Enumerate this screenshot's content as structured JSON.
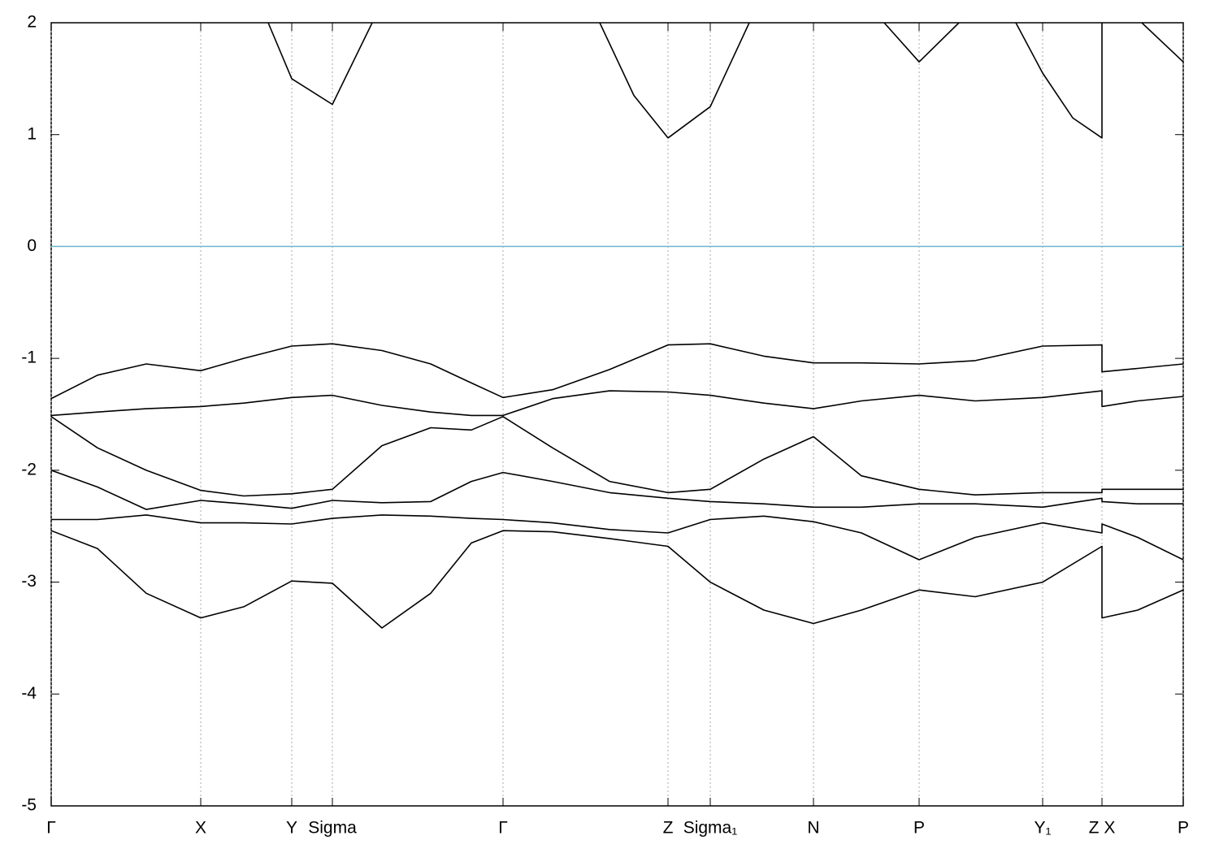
{
  "chart_data": {
    "type": "line",
    "xlim": [
      0,
      13.93
    ],
    "ylim": [
      -5,
      2
    ],
    "xticks": [
      {
        "value": 0,
        "label": "Γ"
      },
      {
        "value": 1.84,
        "label": "X"
      },
      {
        "value": 2.96,
        "label": "Y"
      },
      {
        "value": 3.46,
        "label": "Sigma"
      },
      {
        "value": 5.56,
        "label": "Γ"
      },
      {
        "value": 7.59,
        "label": "Z"
      },
      {
        "value": 8.11,
        "label": "Sigma₁"
      },
      {
        "value": 9.38,
        "label": "N"
      },
      {
        "value": 10.68,
        "label": "P"
      },
      {
        "value": 12.2,
        "label": "Y₁"
      },
      {
        "value": 12.93,
        "label": "Z X"
      },
      {
        "value": 13.93,
        "label": "P"
      }
    ],
    "yticks": [
      -5,
      -4,
      -3,
      -2,
      -1,
      0,
      1,
      2
    ],
    "grid": "x",
    "fermi_level": 0,
    "fermi_color": "#6bb8cc",
    "x": [
      0,
      0.57,
      1.17,
      1.84,
      2.37,
      2.96,
      3.46,
      4.07,
      4.67,
      5.17,
      5.56,
      6.17,
      6.87,
      7.59,
      8.11,
      8.77,
      9.38,
      9.97,
      10.68,
      11.37,
      12.2,
      12.93,
      12.93,
      13.37,
      13.93
    ],
    "series": [
      {
        "color": "#000000",
        "values": [
          -2.54,
          -2.7,
          -3.1,
          -3.32,
          -3.22,
          -2.99,
          -3.01,
          -3.41,
          -3.1,
          -2.65,
          -2.54,
          -2.55,
          -2.61,
          -2.68,
          -3.0,
          -3.25,
          -3.37,
          -3.25,
          -3.07,
          -3.13,
          -3.0,
          -2.68,
          -3.32,
          -3.25,
          -3.07
        ]
      },
      {
        "color": "#000000",
        "values": [
          -2.44,
          -2.44,
          -2.4,
          -2.47,
          -2.47,
          -2.48,
          -2.43,
          -2.4,
          -2.41,
          -2.43,
          -2.44,
          -2.47,
          -2.53,
          -2.56,
          -2.44,
          -2.41,
          -2.46,
          -2.56,
          -2.8,
          -2.6,
          -2.47,
          -2.56,
          -2.48,
          -2.6,
          -2.8
        ]
      },
      {
        "color": "#000000",
        "values": [
          -2.0,
          -2.15,
          -2.35,
          -2.27,
          -2.3,
          -2.34,
          -2.27,
          -2.29,
          -2.28,
          -2.1,
          -2.02,
          -2.1,
          -2.2,
          -2.25,
          -2.28,
          -2.3,
          -2.33,
          -2.33,
          -2.3,
          -2.3,
          -2.33,
          -2.25,
          -2.28,
          -2.3,
          -2.3
        ]
      },
      {
        "color": "#000000",
        "values": [
          -1.52,
          -1.8,
          -2.0,
          -2.18,
          -2.23,
          -2.21,
          -2.17,
          -1.78,
          -1.62,
          -1.64,
          -1.52,
          -1.8,
          -2.1,
          -2.2,
          -2.17,
          -1.9,
          -1.7,
          -2.05,
          -2.17,
          -2.22,
          -2.2,
          -2.2,
          -2.17,
          -2.17,
          -2.17
        ]
      },
      {
        "color": "#000000",
        "values": [
          -1.51,
          -1.48,
          -1.45,
          -1.43,
          -1.4,
          -1.35,
          -1.33,
          -1.42,
          -1.48,
          -1.51,
          -1.51,
          -1.36,
          -1.29,
          -1.3,
          -1.33,
          -1.4,
          -1.45,
          -1.38,
          -1.33,
          -1.38,
          -1.35,
          -1.29,
          -1.43,
          -1.38,
          -1.34
        ]
      },
      {
        "color": "#000000",
        "values": [
          -1.36,
          -1.15,
          -1.05,
          -1.11,
          -1.0,
          -0.89,
          -0.87,
          -0.93,
          -1.05,
          -1.22,
          -1.35,
          -1.28,
          -1.1,
          -0.88,
          -0.87,
          -0.98,
          -1.04,
          -1.04,
          -1.05,
          -1.02,
          -0.89,
          -0.88,
          -1.12,
          -1.09,
          -1.05
        ]
      },
      {
        "color": "#000000",
        "x": [
          2.67,
          2.96,
          3.46,
          3.95,
          null,
          6.75,
          7.17,
          7.59,
          8.11,
          8.59,
          null,
          10.25,
          10.68,
          11.17,
          null,
          11.87,
          12.2,
          12.57,
          12.93,
          12.93,
          null,
          13.42,
          13.93
        ],
        "values": [
          2,
          1.5,
          1.27,
          2,
          null,
          2,
          1.35,
          0.97,
          1.25,
          2,
          null,
          2,
          1.65,
          2,
          null,
          2,
          1.55,
          1.15,
          0.97,
          2,
          null,
          2,
          1.65
        ]
      }
    ]
  }
}
